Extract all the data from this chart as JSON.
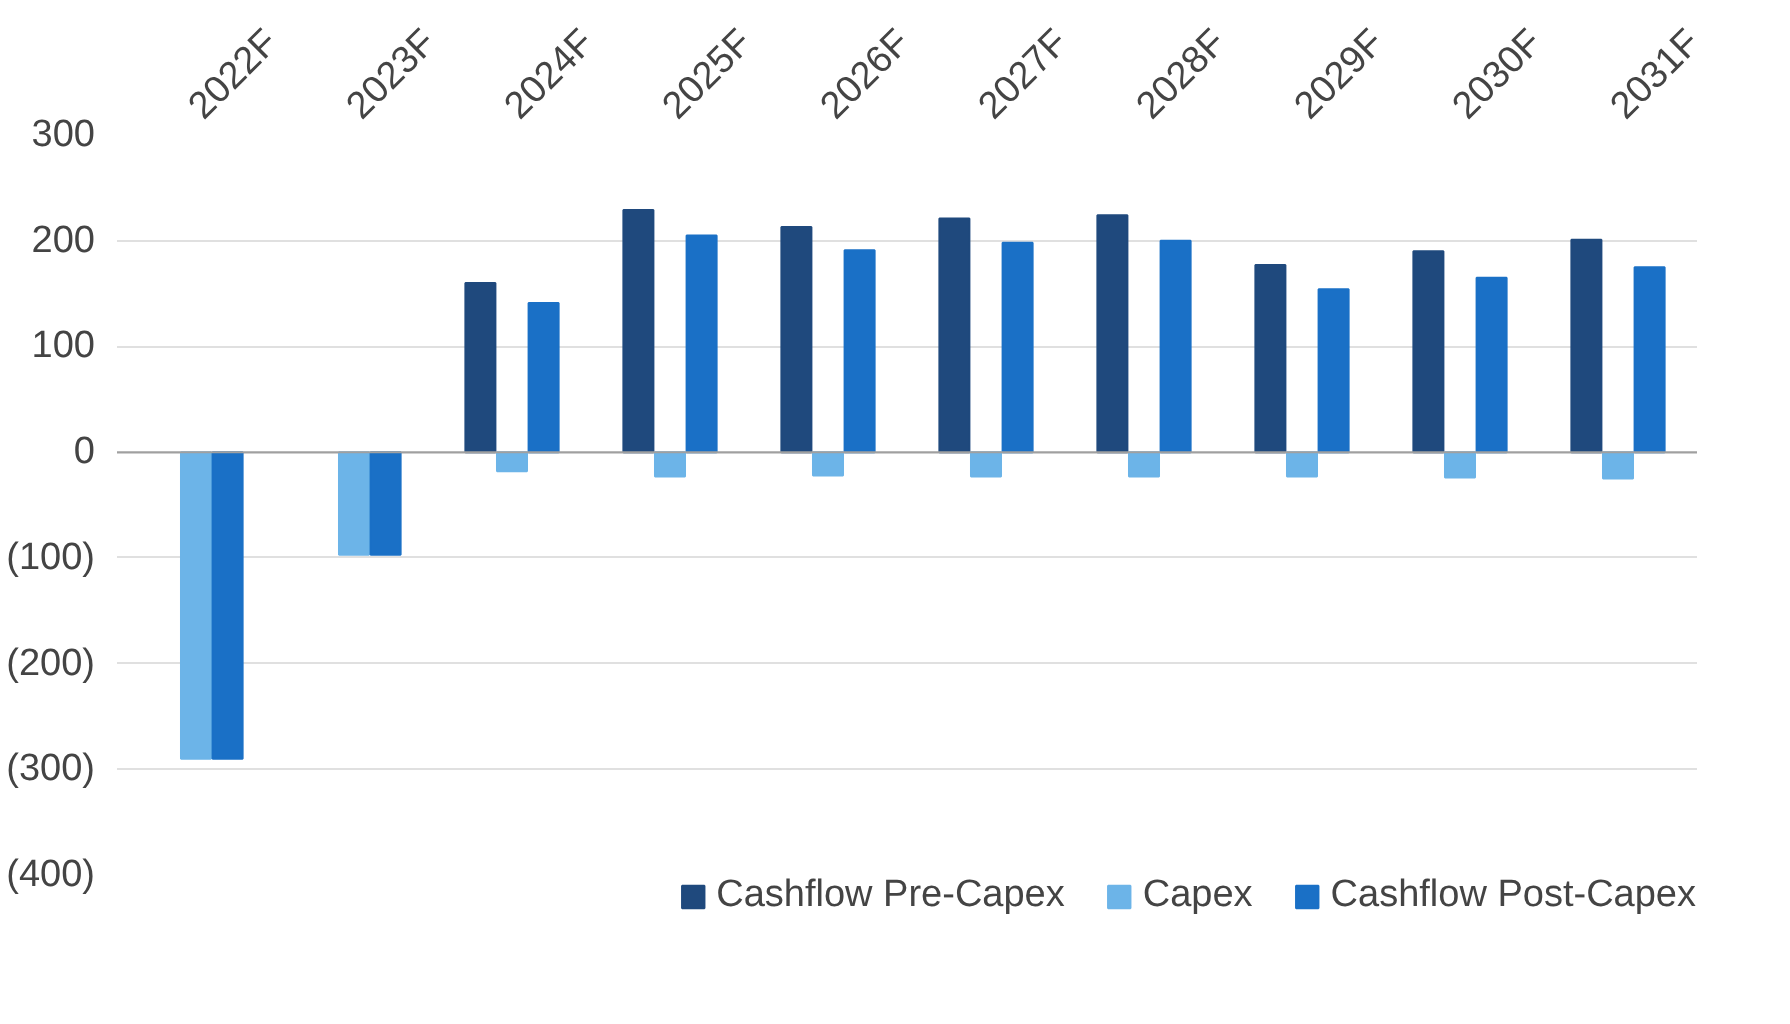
{
  "chart_data": {
    "type": "bar",
    "categories": [
      "2022F",
      "2023F",
      "2024F",
      "2025F",
      "2026F",
      "2027F",
      "2028F",
      "2029F",
      "2030F",
      "2031F"
    ],
    "series": [
      {
        "name": "Cashflow Pre-Capex",
        "color": "#1f497d",
        "values": [
          null,
          null,
          160,
          229,
          213,
          221,
          224,
          177,
          190,
          201
        ]
      },
      {
        "name": "Capex",
        "color": "#6cb4e8",
        "values": [
          -290,
          -97,
          -18,
          -23,
          -22,
          -23,
          -23,
          -23,
          -24,
          -25
        ]
      },
      {
        "name": "Cashflow Post-Capex",
        "color": "#1a70c6",
        "values": [
          -290,
          -97,
          141,
          205,
          191,
          198,
          200,
          154,
          165,
          175
        ]
      }
    ],
    "ylim": [
      -400,
      300
    ],
    "yticks": [
      {
        "value": -400,
        "label": "(400)"
      },
      {
        "value": -300,
        "label": "(300)"
      },
      {
        "value": -200,
        "label": "(200)"
      },
      {
        "value": -100,
        "label": "(100)"
      },
      0,
      100,
      200,
      300
    ],
    "grid": "y",
    "legend": "bottom"
  }
}
